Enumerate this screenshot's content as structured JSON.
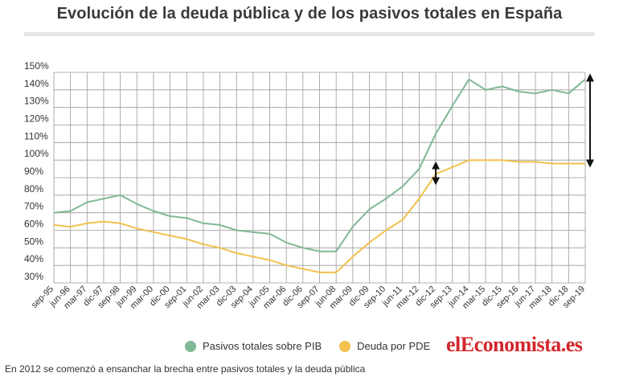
{
  "page": {
    "title": "Evolución de la deuda pública y de los pasivos totales en España",
    "brand": "elEconomista.es",
    "footnote": "En 2012 se comenzó a ensanchar la brecha entre pasivos totales y la deuda pública"
  },
  "chart_data": {
    "type": "line",
    "title": "Evolución de la deuda pública y de los pasivos totales en España",
    "xlabel": "",
    "ylabel": "",
    "ylim": [
      30,
      150
    ],
    "yticks": [
      "30%",
      "40%",
      "50%",
      "60%",
      "70%",
      "80%",
      "90%",
      "100%",
      "110%",
      "120%",
      "130%",
      "140%",
      "150%"
    ],
    "x": [
      "sep-95",
      "jun-96",
      "mar-97",
      "dic-97",
      "sep-98",
      "jun-99",
      "mar-00",
      "dic-00",
      "sep-01",
      "jun-02",
      "mar-03",
      "dic-03",
      "sep-04",
      "jun-05",
      "mar-06",
      "dic-06",
      "sep-07",
      "jun-08",
      "mar-09",
      "dic-09",
      "sep-10",
      "jun-11",
      "mar-12",
      "dic-12",
      "sep-13",
      "jun-14",
      "mar-15",
      "dic-15",
      "sep-16",
      "jun-17",
      "mar-18",
      "dic-18",
      "sep-19"
    ],
    "grid": true,
    "legend_position": "bottom",
    "series": [
      {
        "name": "Pasivos totales sobre PIB",
        "color": "#7fb894",
        "values": [
          70,
          71,
          76,
          78,
          80,
          75,
          71,
          68,
          67,
          64,
          63,
          60,
          59,
          58,
          53,
          50,
          48,
          48,
          62,
          72,
          78,
          85,
          95,
          115,
          131,
          146,
          140,
          142,
          139,
          138,
          140,
          138,
          146
        ]
      },
      {
        "name": "Deuda por PDE",
        "color": "#f2c14e",
        "values": [
          63,
          62,
          64,
          65,
          64,
          61,
          59,
          57,
          55,
          52,
          50,
          47,
          45,
          43,
          40,
          38,
          36,
          36,
          45,
          53,
          60,
          66,
          78,
          92,
          96,
          100,
          100,
          100,
          99,
          99,
          98,
          98,
          98
        ]
      }
    ],
    "annotations": [
      {
        "type": "double-arrow",
        "x": "dic-12",
        "from": 88,
        "to": 97
      },
      {
        "type": "double-arrow",
        "x": "sep-19",
        "from": 98,
        "to": 147
      }
    ]
  }
}
